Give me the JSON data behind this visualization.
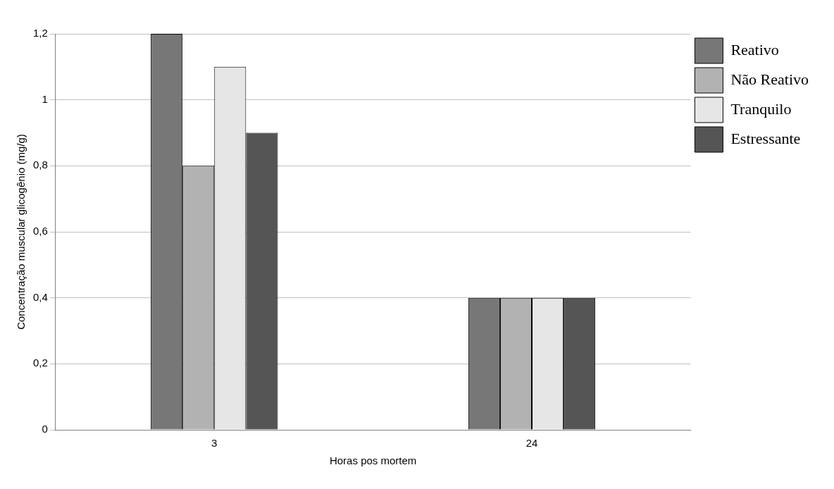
{
  "chart_data": {
    "type": "bar",
    "categories": [
      "3",
      "24"
    ],
    "series": [
      {
        "name": "Reativo",
        "color": "#777777",
        "values": [
          1.2,
          0.4
        ]
      },
      {
        "name": "Não Reativo",
        "color": "#b2b2b2",
        "values": [
          0.8,
          0.4
        ]
      },
      {
        "name": "Tranquilo",
        "color": "#e6e6e6",
        "values": [
          1.1,
          0.4
        ]
      },
      {
        "name": "Estressante",
        "color": "#555555",
        "values": [
          0.9,
          0.4
        ]
      }
    ],
    "xlabel": "Horas pos mortem",
    "ylabel": "Concentração muscular glicogênio (mg/g)",
    "ylim": [
      0,
      1.2
    ],
    "yticks": [
      {
        "value": 0,
        "label": "0"
      },
      {
        "value": 0.2,
        "label": "0,2"
      },
      {
        "value": 0.4,
        "label": "0,4"
      },
      {
        "value": 0.6,
        "label": "0,6"
      },
      {
        "value": 0.8,
        "label": "0,8"
      },
      {
        "value": 1,
        "label": "1"
      },
      {
        "value": 1.2,
        "label": "1,2"
      }
    ],
    "grid": "y",
    "legend": "right"
  }
}
